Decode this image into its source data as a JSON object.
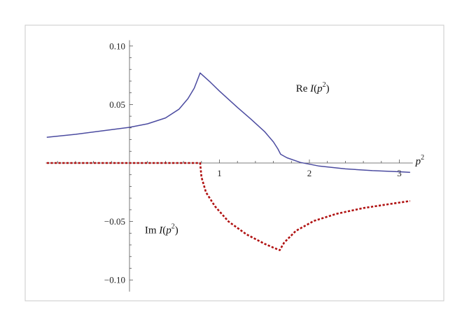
{
  "chart_data": {
    "type": "line",
    "title": "",
    "xlabel": "p",
    "xlabel_sup": "2",
    "ylabel": "",
    "xlim": [
      -1,
      3.1
    ],
    "ylim": [
      -0.11,
      0.105
    ],
    "xticks": [
      1,
      2,
      3
    ],
    "yticks": [
      0.1,
      0.05,
      -0.05,
      -0.1
    ],
    "xtick_labels": [
      "1",
      "2",
      "3"
    ],
    "ytick_labels": [
      "0.10",
      "0.05",
      "−0.05",
      "−0.10"
    ],
    "grid": false,
    "series": [
      {
        "name": "Re I(p²)",
        "color": "#4b4ba0",
        "style": "solid",
        "points": [
          [
            -0.92,
            0.022
          ],
          [
            -0.6,
            0.0245
          ],
          [
            -0.3,
            0.0275
          ],
          [
            0.0,
            0.0305
          ],
          [
            0.2,
            0.0335
          ],
          [
            0.4,
            0.0385
          ],
          [
            0.55,
            0.046
          ],
          [
            0.65,
            0.055
          ],
          [
            0.72,
            0.064
          ],
          [
            0.76,
            0.072
          ],
          [
            0.785,
            0.077
          ],
          [
            0.9,
            0.069
          ],
          [
            1.0,
            0.0615
          ],
          [
            1.2,
            0.0475
          ],
          [
            1.35,
            0.0375
          ],
          [
            1.5,
            0.027
          ],
          [
            1.6,
            0.018
          ],
          [
            1.65,
            0.012
          ],
          [
            1.68,
            0.0075
          ],
          [
            1.75,
            0.0045
          ],
          [
            1.9,
            0.0005
          ],
          [
            2.1,
            -0.0025
          ],
          [
            2.4,
            -0.005
          ],
          [
            2.7,
            -0.0065
          ],
          [
            3.0,
            -0.0075
          ],
          [
            3.12,
            -0.008
          ]
        ]
      },
      {
        "name": "Im I(p²)",
        "color": "#b01010",
        "style": "dotted",
        "points": [
          [
            -0.92,
            0.0
          ],
          [
            0.0,
            0.0
          ],
          [
            0.4,
            0.0
          ],
          [
            0.785,
            0.0
          ],
          [
            0.8,
            -0.012
          ],
          [
            0.85,
            -0.025
          ],
          [
            0.95,
            -0.037
          ],
          [
            1.1,
            -0.05
          ],
          [
            1.3,
            -0.061
          ],
          [
            1.5,
            -0.069
          ],
          [
            1.62,
            -0.073
          ],
          [
            1.67,
            -0.0745
          ],
          [
            1.72,
            -0.068
          ],
          [
            1.85,
            -0.058
          ],
          [
            2.05,
            -0.0495
          ],
          [
            2.3,
            -0.0435
          ],
          [
            2.6,
            -0.0385
          ],
          [
            2.9,
            -0.035
          ],
          [
            3.12,
            -0.0325
          ]
        ]
      }
    ],
    "annotations": [
      {
        "series": 0,
        "text_main": "Re",
        "text_italic": "I",
        "text_paren_open": "(p",
        "text_sup": "2",
        "text_paren_close": ")",
        "x": 1.85,
        "y": 0.061
      },
      {
        "series": 1,
        "text_main": "Im",
        "text_italic": "I",
        "text_paren_open": "(p",
        "text_sup": "2",
        "text_paren_close": ")",
        "x": 0.17,
        "y": -0.06
      }
    ]
  }
}
